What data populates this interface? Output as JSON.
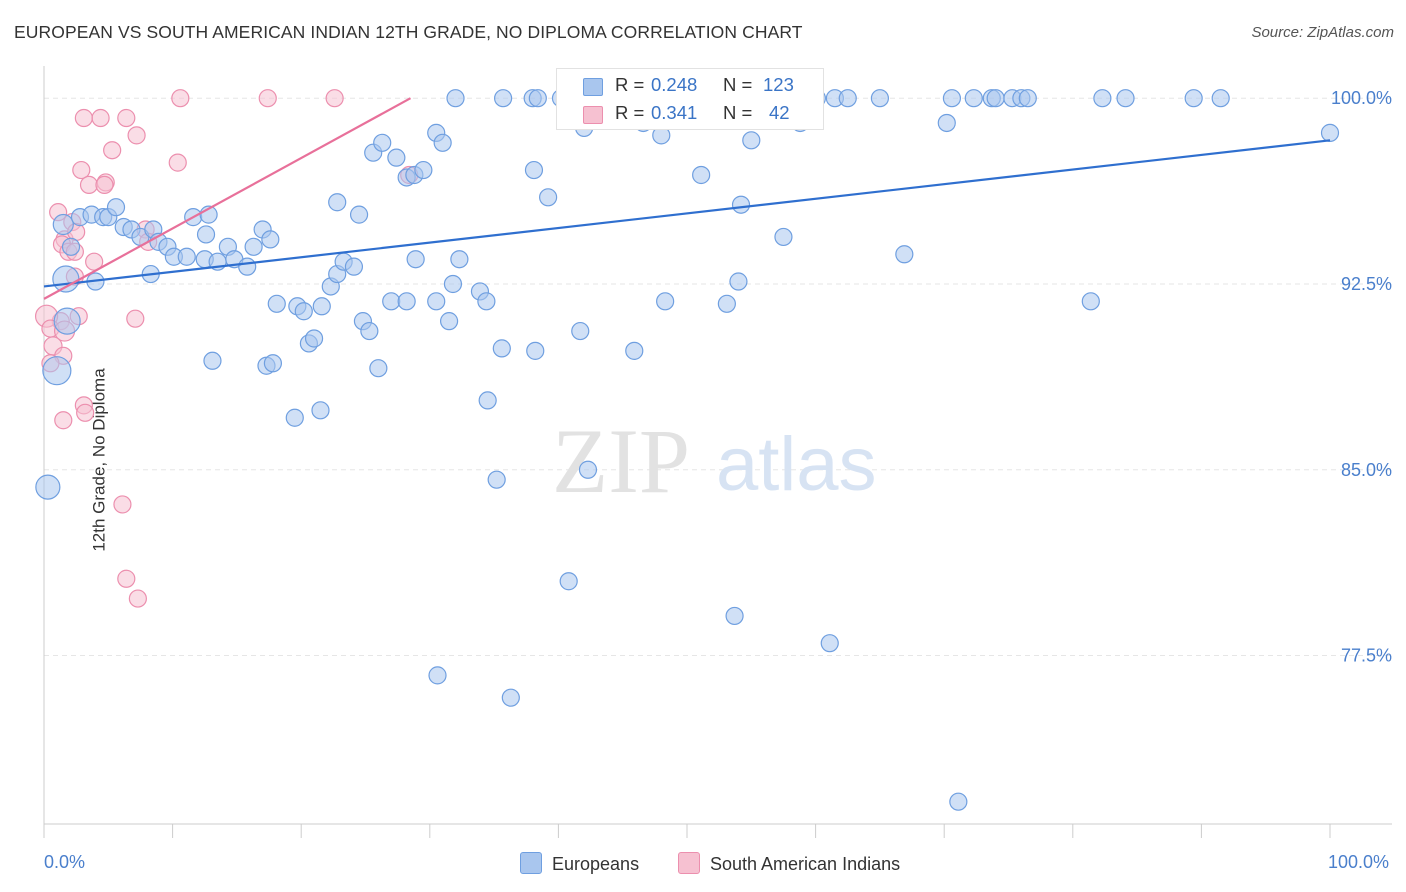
{
  "title": "EUROPEAN VS SOUTH AMERICAN INDIAN 12TH GRADE, NO DIPLOMA CORRELATION CHART",
  "source": "Source: ZipAtlas.com",
  "watermark": {
    "zip": "ZIP",
    "atlas": "atlas"
  },
  "legend_top": {
    "rows": [
      {
        "r_label": "R =",
        "r_value": "0.248",
        "n_label": "N =",
        "n_value": "123"
      },
      {
        "r_label": "R =",
        "r_value": "0.341",
        "n_label": "N =",
        "n_value": "42"
      }
    ]
  },
  "bottom_legend": {
    "europeans": "Europeans",
    "sai": "South American Indians"
  },
  "x_tick_labels": {
    "left": "0.0%",
    "right": "100.0%"
  },
  "colors": {
    "blue_fill": "#a9c6ee",
    "blue_stroke": "#6f9fe0",
    "blue_line": "#2f6fcf",
    "pink_fill": "#f6c1d1",
    "pink_stroke": "#ec8fae",
    "pink_line": "#e8709a",
    "tick_text": "#4a7fcc",
    "grid": "#e6e6e6"
  },
  "chart_data": {
    "type": "scatter",
    "title": "EUROPEAN VS SOUTH AMERICAN INDIAN 12TH GRADE, NO DIPLOMA CORRELATION CHART",
    "xlabel": "",
    "ylabel": "12th Grade, No Diploma",
    "xlim": [
      0,
      100
    ],
    "ylim": [
      70.7,
      101.3
    ],
    "y_ticks": [
      {
        "value": 100.0,
        "label": "100.0%"
      },
      {
        "value": 92.5,
        "label": "92.5%"
      },
      {
        "value": 85.0,
        "label": "85.0%"
      },
      {
        "value": 77.5,
        "label": "77.5%"
      }
    ],
    "series": [
      {
        "name": "Europeans",
        "R": 0.248,
        "N": 123,
        "trendline": {
          "x": [
            0,
            100
          ],
          "y": [
            92.4,
            98.3
          ]
        },
        "points": [
          [
            32.0,
            100
          ],
          [
            35.7,
            100
          ],
          [
            38.0,
            100
          ],
          [
            38.4,
            100
          ],
          [
            40.2,
            100
          ],
          [
            40.6,
            100
          ],
          [
            41.1,
            100
          ],
          [
            41.4,
            100
          ],
          [
            42.0,
            100
          ],
          [
            43.2,
            100
          ],
          [
            43.9,
            100
          ],
          [
            44.5,
            100
          ],
          [
            45.8,
            100
          ],
          [
            48.0,
            100
          ],
          [
            49.4,
            100
          ],
          [
            52.0,
            100
          ],
          [
            55.5,
            100
          ],
          [
            57.0,
            100
          ],
          [
            58.3,
            100
          ],
          [
            60.1,
            100
          ],
          [
            61.5,
            100
          ],
          [
            62.5,
            100
          ],
          [
            65.0,
            100
          ],
          [
            70.6,
            100
          ],
          [
            72.3,
            100
          ],
          [
            73.7,
            100
          ],
          [
            74.0,
            100
          ],
          [
            75.3,
            100
          ],
          [
            76.0,
            100
          ],
          [
            76.5,
            100
          ],
          [
            82.3,
            100
          ],
          [
            84.1,
            100
          ],
          [
            89.4,
            100
          ],
          [
            91.5,
            100
          ],
          [
            46.6,
            99.0
          ],
          [
            58.8,
            99.0
          ],
          [
            70.2,
            99.0
          ],
          [
            100,
            98.6
          ],
          [
            30.5,
            98.6
          ],
          [
            31.0,
            98.2
          ],
          [
            48.0,
            98.5
          ],
          [
            55.0,
            98.3
          ],
          [
            42.0,
            98.8
          ],
          [
            25.6,
            97.8
          ],
          [
            26.3,
            98.2
          ],
          [
            27.4,
            97.6
          ],
          [
            28.2,
            96.8
          ],
          [
            28.8,
            96.9
          ],
          [
            29.5,
            97.1
          ],
          [
            38.1,
            97.1
          ],
          [
            51.1,
            96.9
          ],
          [
            39.2,
            96.0
          ],
          [
            54.2,
            95.7
          ],
          [
            22.8,
            95.8
          ],
          [
            24.5,
            95.3
          ],
          [
            1.5,
            94.9
          ],
          [
            2.8,
            95.2
          ],
          [
            3.7,
            95.3
          ],
          [
            4.6,
            95.2
          ],
          [
            5.0,
            95.2
          ],
          [
            5.6,
            95.6
          ],
          [
            6.2,
            94.8
          ],
          [
            6.8,
            94.7
          ],
          [
            7.5,
            94.4
          ],
          [
            8.5,
            94.7
          ],
          [
            8.9,
            94.2
          ],
          [
            9.6,
            94.0
          ],
          [
            10.1,
            93.6
          ],
          [
            11.1,
            93.6
          ],
          [
            11.6,
            95.2
          ],
          [
            12.5,
            93.5
          ],
          [
            12.8,
            95.3
          ],
          [
            12.6,
            94.5
          ],
          [
            13.5,
            93.4
          ],
          [
            14.3,
            94.0
          ],
          [
            14.8,
            93.5
          ],
          [
            15.8,
            93.2
          ],
          [
            16.3,
            94.0
          ],
          [
            17.0,
            94.7
          ],
          [
            17.6,
            94.3
          ],
          [
            8.3,
            92.9
          ],
          [
            4.0,
            92.6
          ],
          [
            2.1,
            94.0
          ],
          [
            1.7,
            92.7
          ],
          [
            1.8,
            91.0
          ],
          [
            1.0,
            89.0
          ],
          [
            0.3,
            84.3
          ],
          [
            18.1,
            91.7
          ],
          [
            19.7,
            91.6
          ],
          [
            20.2,
            91.4
          ],
          [
            20.6,
            90.1
          ],
          [
            21.0,
            90.3
          ],
          [
            21.6,
            91.6
          ],
          [
            22.3,
            92.4
          ],
          [
            22.8,
            92.9
          ],
          [
            23.3,
            93.4
          ],
          [
            24.1,
            93.2
          ],
          [
            24.8,
            91.0
          ],
          [
            25.3,
            90.6
          ],
          [
            26.0,
            89.1
          ],
          [
            27.0,
            91.8
          ],
          [
            28.2,
            91.8
          ],
          [
            28.9,
            93.5
          ],
          [
            30.5,
            91.8
          ],
          [
            31.8,
            92.5
          ],
          [
            32.3,
            93.5
          ],
          [
            33.9,
            92.2
          ],
          [
            34.4,
            91.8
          ],
          [
            31.5,
            91.0
          ],
          [
            35.6,
            89.9
          ],
          [
            38.2,
            89.8
          ],
          [
            41.7,
            90.6
          ],
          [
            45.9,
            89.8
          ],
          [
            48.3,
            91.8
          ],
          [
            53.1,
            91.7
          ],
          [
            54.0,
            92.6
          ],
          [
            57.5,
            94.4
          ],
          [
            66.9,
            93.7
          ],
          [
            81.4,
            91.8
          ],
          [
            13.1,
            89.4
          ],
          [
            17.3,
            89.2
          ],
          [
            17.8,
            89.3
          ],
          [
            19.5,
            87.1
          ],
          [
            21.5,
            87.4
          ],
          [
            34.5,
            87.8
          ],
          [
            35.2,
            84.6
          ],
          [
            42.3,
            85.0
          ],
          [
            40.8,
            80.5
          ],
          [
            53.7,
            79.1
          ],
          [
            61.1,
            78.0
          ],
          [
            30.6,
            76.7
          ],
          [
            36.3,
            75.8
          ],
          [
            71.1,
            71.6
          ]
        ]
      },
      {
        "name": "South American Indians",
        "R": 0.341,
        "N": 42,
        "trendline": {
          "x": [
            0,
            28.5
          ],
          "y": [
            91.9,
            100.0
          ]
        },
        "points": [
          [
            10.6,
            100
          ],
          [
            17.4,
            100
          ],
          [
            22.6,
            100
          ],
          [
            3.1,
            99.2
          ],
          [
            4.4,
            99.2
          ],
          [
            6.4,
            99.2
          ],
          [
            7.2,
            98.5
          ],
          [
            5.3,
            97.9
          ],
          [
            10.4,
            97.4
          ],
          [
            2.9,
            97.1
          ],
          [
            3.5,
            96.5
          ],
          [
            4.8,
            96.6
          ],
          [
            4.7,
            96.5
          ],
          [
            28.4,
            96.9
          ],
          [
            1.1,
            95.4
          ],
          [
            1.6,
            94.3
          ],
          [
            1.4,
            94.1
          ],
          [
            2.2,
            95.0
          ],
          [
            2.5,
            94.6
          ],
          [
            7.9,
            94.7
          ],
          [
            8.1,
            94.2
          ],
          [
            1.9,
            93.8
          ],
          [
            2.4,
            93.8
          ],
          [
            3.9,
            93.4
          ],
          [
            2.4,
            92.8
          ],
          [
            2.7,
            91.2
          ],
          [
            7.1,
            91.1
          ],
          [
            1.3,
            91.0
          ],
          [
            0.2,
            91.2
          ],
          [
            0.5,
            90.7
          ],
          [
            1.6,
            90.6
          ],
          [
            0.7,
            90.0
          ],
          [
            1.5,
            89.6
          ],
          [
            0.5,
            89.3
          ],
          [
            3.1,
            87.6
          ],
          [
            3.2,
            87.3
          ],
          [
            1.5,
            87.0
          ],
          [
            6.1,
            83.6
          ],
          [
            6.4,
            80.6
          ],
          [
            7.3,
            79.8
          ]
        ]
      }
    ]
  }
}
